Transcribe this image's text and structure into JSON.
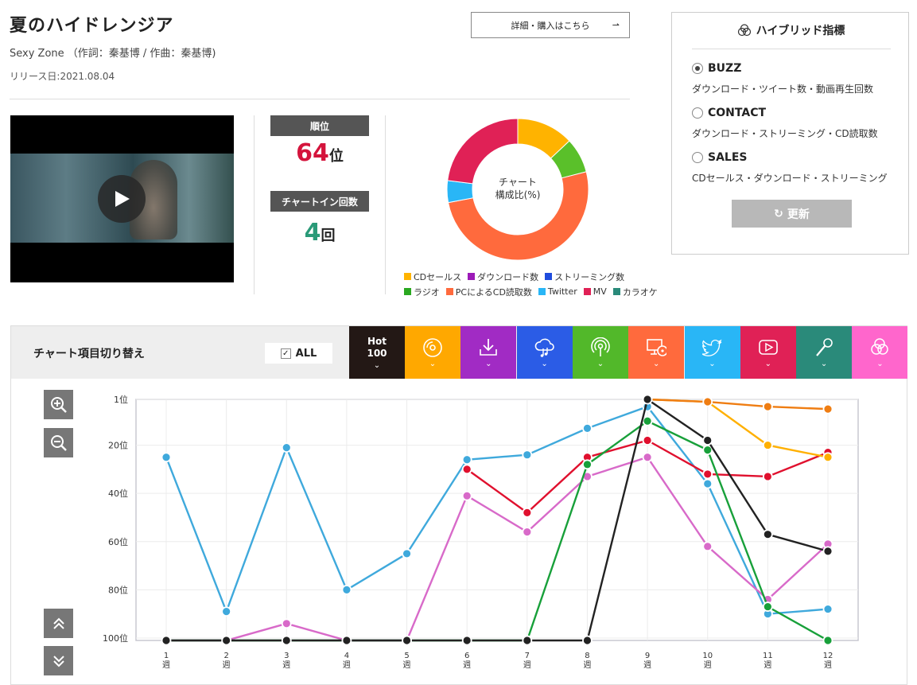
{
  "song": {
    "title": "夏のハイドレンジア",
    "artist_line": "Sexy Zone （作詞：秦基博 / 作曲：秦基博)",
    "release": "リリース日:2021.08.04",
    "buy_button": "詳細・購入はこちら"
  },
  "stats": {
    "rank_label": "順位",
    "rank_value": "64",
    "rank_unit": "位",
    "chartin_label": "チャートイン回数",
    "chartin_value": "4",
    "chartin_unit": "回"
  },
  "donut": {
    "center_line1": "チャート",
    "center_line2": "構成比(%)",
    "segments": [
      {
        "name": "CDセールス",
        "color": "#ffb300",
        "pct": 13
      },
      {
        "name": "ラジオ",
        "color": "#5ac02a",
        "pct": 8
      },
      {
        "name": "PCによるCD読取数",
        "color": "#ff6a3d",
        "pct": 51
      },
      {
        "name": "Twitter",
        "color": "#29b6f6",
        "pct": 5
      },
      {
        "name": "MV",
        "color": "#e02156",
        "pct": 23
      }
    ],
    "legend": [
      {
        "name": "CDセールス",
        "color": "#ffb300"
      },
      {
        "name": "ダウンロード数",
        "color": "#9c1ab8"
      },
      {
        "name": "ストリーミング数",
        "color": "#1f4cdd"
      },
      {
        "name": "ラジオ",
        "color": "#2aa820"
      },
      {
        "name": "PCによるCD読取数",
        "color": "#ff6a3d"
      },
      {
        "name": "Twitter",
        "color": "#29b6f6"
      },
      {
        "name": "MV",
        "color": "#e02156"
      },
      {
        "name": "カラオケ",
        "color": "#2a8a7a"
      }
    ]
  },
  "panel": {
    "title": "ハイブリッド指標",
    "options": [
      {
        "label": "BUZZ",
        "desc": "ダウンロード・ツイート数・動画再生回数",
        "selected": true
      },
      {
        "label": "CONTACT",
        "desc": "ダウンロード・ストリーミング・CD読取数",
        "selected": false
      },
      {
        "label": "SALES",
        "desc": "CDセールス・ダウンロード・ストリーミング",
        "selected": false
      }
    ],
    "refresh": "更新"
  },
  "switcher": {
    "label": "チャート項目切り替え",
    "all_label": "ALL",
    "hot_line1": "Hot",
    "hot_line2": "100",
    "tabs": [
      {
        "icon": "cd-icon",
        "color": "#ffa800"
      },
      {
        "icon": "download-icon",
        "color": "#a12bc4"
      },
      {
        "icon": "streaming-icon",
        "color": "#2b5ce6"
      },
      {
        "icon": "radio-icon",
        "color": "#52b82a"
      },
      {
        "icon": "pc-cd-icon",
        "color": "#ff6a3d"
      },
      {
        "icon": "twitter-icon",
        "color": "#29b6f6"
      },
      {
        "icon": "mv-icon",
        "color": "#e02156"
      },
      {
        "icon": "karaoke-icon",
        "color": "#2a8a7a"
      },
      {
        "icon": "hybrid-icon",
        "color": "#ff66cc"
      }
    ]
  },
  "chart_data": {
    "type": "line",
    "x": [
      "1\n週",
      "2\n週",
      "3\n週",
      "4\n週",
      "5\n週",
      "6\n週",
      "7\n週",
      "8\n週",
      "9\n週",
      "10\n週",
      "11\n週",
      "12\n週"
    ],
    "y_ticks": [
      "1位",
      "20位",
      "40位",
      "60位",
      "80位",
      "100位"
    ],
    "y_tick_values": [
      1,
      20,
      40,
      60,
      80,
      100
    ],
    "ylim": [
      1,
      101
    ],
    "y_inverted": true,
    "series": [
      {
        "color": "#3fa9dc",
        "values": [
          25,
          89,
          21,
          80,
          65,
          26,
          24,
          13,
          4,
          36,
          90,
          88
        ]
      },
      {
        "color": "#d86ac9",
        "values": [
          101,
          101,
          94,
          101,
          101,
          41,
          56,
          33,
          25,
          62,
          84,
          61
        ]
      },
      {
        "color": "#e0102e",
        "values": [
          null,
          null,
          null,
          null,
          null,
          30,
          48,
          25,
          18,
          32,
          33,
          23
        ]
      },
      {
        "color": "#18a03a",
        "values": [
          101,
          101,
          101,
          101,
          101,
          101,
          101,
          28,
          10,
          22,
          87,
          101
        ]
      },
      {
        "color": "#ffb000",
        "values": [
          null,
          null,
          null,
          null,
          null,
          null,
          null,
          null,
          1,
          2,
          20,
          25
        ]
      },
      {
        "color": "#ef7d12",
        "values": [
          null,
          null,
          null,
          null,
          null,
          null,
          null,
          null,
          1,
          2,
          4,
          5
        ]
      },
      {
        "color": "#222222",
        "values": [
          101,
          101,
          101,
          101,
          101,
          101,
          101,
          101,
          1,
          18,
          57,
          64
        ]
      }
    ]
  }
}
